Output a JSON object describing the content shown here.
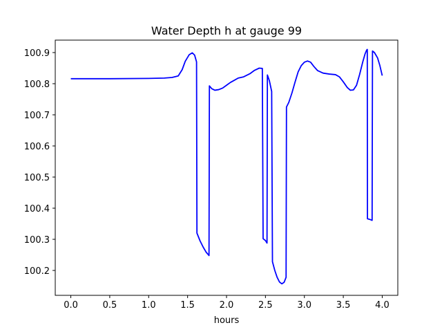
{
  "chart_data": {
    "type": "line",
    "title": "Water Depth h at gauge 99",
    "xlabel": "hours",
    "ylabel": "",
    "xlim": [
      -0.2,
      4.2
    ],
    "ylim": [
      100.12,
      100.94
    ],
    "xticks": [
      0.0,
      0.5,
      1.0,
      1.5,
      2.0,
      2.5,
      3.0,
      3.5,
      4.0
    ],
    "xtick_labels": [
      "0.0",
      "0.5",
      "1.0",
      "1.5",
      "2.0",
      "2.5",
      "3.0",
      "3.5",
      "4.0"
    ],
    "yticks": [
      100.2,
      100.3,
      100.4,
      100.5,
      100.6,
      100.7,
      100.8,
      100.9
    ],
    "ytick_labels": [
      "100.2",
      "100.3",
      "100.4",
      "100.5",
      "100.6",
      "100.7",
      "100.8",
      "100.9"
    ],
    "grid": false,
    "series": [
      {
        "color": "#0000ff",
        "points": [
          [
            0.0,
            100.816
          ],
          [
            0.5,
            100.816
          ],
          [
            1.0,
            100.817
          ],
          [
            1.2,
            100.818
          ],
          [
            1.3,
            100.82
          ],
          [
            1.38,
            100.825
          ],
          [
            1.43,
            100.845
          ],
          [
            1.47,
            100.872
          ],
          [
            1.52,
            100.893
          ],
          [
            1.56,
            100.899
          ],
          [
            1.59,
            100.892
          ],
          [
            1.615,
            100.87
          ],
          [
            1.62,
            100.32
          ],
          [
            1.66,
            100.295
          ],
          [
            1.7,
            100.275
          ],
          [
            1.74,
            100.258
          ],
          [
            1.775,
            100.248
          ],
          [
            1.78,
            100.793
          ],
          [
            1.81,
            100.784
          ],
          [
            1.85,
            100.779
          ],
          [
            1.9,
            100.781
          ],
          [
            1.95,
            100.786
          ],
          [
            2.0,
            100.795
          ],
          [
            2.05,
            100.804
          ],
          [
            2.1,
            100.811
          ],
          [
            2.15,
            100.818
          ],
          [
            2.22,
            100.822
          ],
          [
            2.3,
            100.832
          ],
          [
            2.36,
            100.843
          ],
          [
            2.42,
            100.85
          ],
          [
            2.46,
            100.849
          ],
          [
            2.47,
            100.302
          ],
          [
            2.5,
            100.296
          ],
          [
            2.52,
            100.288
          ],
          [
            2.525,
            100.828
          ],
          [
            2.55,
            100.81
          ],
          [
            2.58,
            100.775
          ],
          [
            2.59,
            100.228
          ],
          [
            2.62,
            100.2
          ],
          [
            2.65,
            100.178
          ],
          [
            2.68,
            100.163
          ],
          [
            2.71,
            100.157
          ],
          [
            2.74,
            100.162
          ],
          [
            2.765,
            100.178
          ],
          [
            2.77,
            100.725
          ],
          [
            2.8,
            100.74
          ],
          [
            2.84,
            100.77
          ],
          [
            2.88,
            100.805
          ],
          [
            2.92,
            100.838
          ],
          [
            2.96,
            100.858
          ],
          [
            3.0,
            100.869
          ],
          [
            3.04,
            100.873
          ],
          [
            3.08,
            100.869
          ],
          [
            3.12,
            100.856
          ],
          [
            3.17,
            100.842
          ],
          [
            3.24,
            100.834
          ],
          [
            3.32,
            100.831
          ],
          [
            3.4,
            100.829
          ],
          [
            3.45,
            100.822
          ],
          [
            3.5,
            100.806
          ],
          [
            3.55,
            100.788
          ],
          [
            3.59,
            100.779
          ],
          [
            3.63,
            100.78
          ],
          [
            3.67,
            100.795
          ],
          [
            3.71,
            100.83
          ],
          [
            3.75,
            100.87
          ],
          [
            3.78,
            100.896
          ],
          [
            3.8,
            100.908
          ],
          [
            3.808,
            100.91
          ],
          [
            3.81,
            100.366
          ],
          [
            3.84,
            100.364
          ],
          [
            3.87,
            100.361
          ],
          [
            3.875,
            100.905
          ],
          [
            3.9,
            100.9
          ],
          [
            3.94,
            100.883
          ],
          [
            3.97,
            100.858
          ],
          [
            4.0,
            100.826
          ]
        ]
      }
    ]
  }
}
